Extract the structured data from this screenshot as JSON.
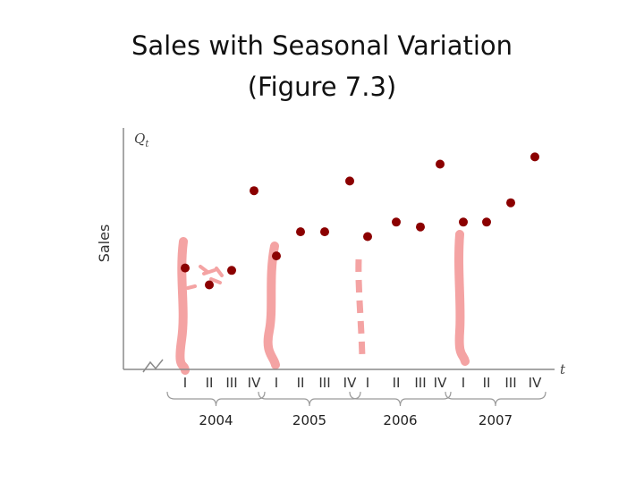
{
  "title": "Sales with Seasonal Variation",
  "subtitle": "(Figure 7.3)",
  "chart_data": {
    "type": "scatter",
    "ylabel": "Sales",
    "y_symbol": "Q",
    "y_symbol_sub": "t",
    "x_symbol": "t",
    "ylim": [
      0,
      100
    ],
    "grid": false,
    "categories": [
      "I",
      "II",
      "III",
      "IV",
      "I",
      "II",
      "III",
      "IV",
      "I",
      "II",
      "III",
      "IV",
      "I",
      "II",
      "III",
      "IV"
    ],
    "years": [
      "2004",
      "2005",
      "2006",
      "2007"
    ],
    "values": [
      42,
      35,
      41,
      74,
      47,
      57,
      57,
      78,
      55,
      61,
      59,
      85,
      61,
      61,
      69,
      88
    ],
    "colors": {
      "point": "#8b0000",
      "axis": "#8a8a8a",
      "seasonal_band": "#f4a3a3"
    }
  }
}
